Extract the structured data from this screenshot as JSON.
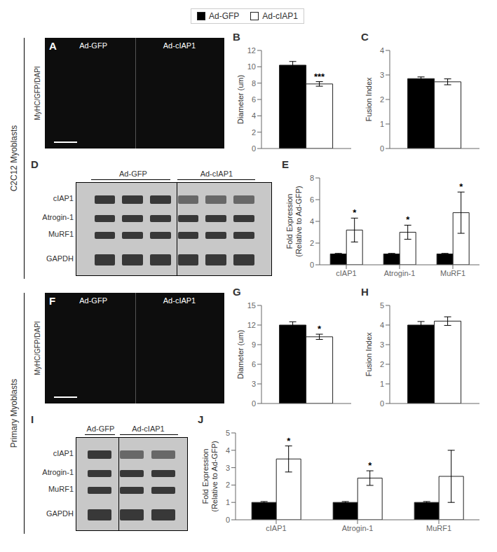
{
  "chart_data": [
    {
      "type": "image",
      "title": "A",
      "annotations": [
        "Ad-GFP",
        "Ad-cIAP1"
      ],
      "ylabel": "MyHC/GFP/DAPI",
      "section": "C2C12 Myoblasts"
    },
    {
      "type": "bar",
      "title": "B",
      "legend": "top",
      "ylabel": "Diameter (um)",
      "categories": [
        null
      ],
      "series": [
        {
          "name": "Ad-GFP",
          "color": "#000000",
          "values": [
            10.2
          ],
          "errors": [
            0.45
          ]
        },
        {
          "name": "Ad-cIAP1",
          "color": "#ffffff",
          "values": [
            7.9
          ],
          "errors": [
            0.28
          ]
        }
      ],
      "ylim": [
        0,
        12
      ],
      "yticks": [
        0,
        2,
        4,
        6,
        8,
        10,
        12
      ],
      "grid": false,
      "annotations": [
        {
          "text": "***",
          "series": "Ad-cIAP1",
          "index": 0
        }
      ]
    },
    {
      "type": "bar",
      "title": "C",
      "ylabel": "Fusion Index",
      "categories": [
        null
      ],
      "series": [
        {
          "name": "Ad-GFP",
          "color": "#000000",
          "values": [
            2.85
          ],
          "errors": [
            0.07
          ]
        },
        {
          "name": "Ad-cIAP1",
          "color": "#ffffff",
          "values": [
            2.72
          ],
          "errors": [
            0.12
          ]
        }
      ],
      "ylim": [
        0,
        4
      ],
      "yticks": [
        0,
        1,
        2,
        3,
        4
      ],
      "grid": false
    },
    {
      "type": "blot",
      "title": "D",
      "categories": [
        "cIAP1",
        "Atrogin-1",
        "MuRF1",
        "GAPDH"
      ],
      "series": [
        {
          "name": "Ad-GFP",
          "lanes": 3
        },
        {
          "name": "Ad-cIAP1",
          "lanes": 3
        }
      ]
    },
    {
      "type": "bar",
      "title": "E",
      "ylabel": "Fold Expression\n(Relative to Ad-GFP)",
      "categories": [
        "cIAP1",
        "Atrogin-1",
        "MuRF1"
      ],
      "series": [
        {
          "name": "Ad-GFP",
          "color": "#000000",
          "values": [
            1.0,
            1.0,
            1.0
          ],
          "errors": [
            0.05,
            0.05,
            0.05
          ]
        },
        {
          "name": "Ad-cIAP1",
          "color": "#ffffff",
          "values": [
            3.2,
            3.0,
            4.8
          ],
          "errors": [
            1.1,
            0.65,
            1.9
          ]
        }
      ],
      "ylim": [
        0,
        8
      ],
      "yticks": [
        0,
        2,
        4,
        6,
        8
      ],
      "grid": false,
      "annotations": [
        {
          "text": "*",
          "series": "Ad-cIAP1",
          "index": 0
        },
        {
          "text": "*",
          "series": "Ad-cIAP1",
          "index": 1
        },
        {
          "text": "*",
          "series": "Ad-cIAP1",
          "index": 2
        }
      ]
    },
    {
      "type": "image",
      "title": "F",
      "annotations": [
        "Ad-GFP",
        "Ad-cIAP1"
      ],
      "ylabel": "MyHC/GFP/DAPI",
      "section": "Primary Myoblasts"
    },
    {
      "type": "bar",
      "title": "G",
      "ylabel": "Diameter (um)",
      "categories": [
        null
      ],
      "series": [
        {
          "name": "Ad-GFP",
          "color": "#000000",
          "values": [
            12.0
          ],
          "errors": [
            0.5
          ]
        },
        {
          "name": "Ad-cIAP1",
          "color": "#ffffff",
          "values": [
            10.2
          ],
          "errors": [
            0.4
          ]
        }
      ],
      "ylim": [
        0,
        15
      ],
      "yticks": [
        0,
        3,
        6,
        9,
        12,
        15
      ],
      "grid": false,
      "annotations": [
        {
          "text": "*",
          "series": "Ad-cIAP1",
          "index": 0
        }
      ]
    },
    {
      "type": "bar",
      "title": "H",
      "ylabel": "Fusion Index",
      "categories": [
        null
      ],
      "series": [
        {
          "name": "Ad-GFP",
          "color": "#000000",
          "values": [
            4.0
          ],
          "errors": [
            0.18
          ]
        },
        {
          "name": "Ad-cIAP1",
          "color": "#ffffff",
          "values": [
            4.2
          ],
          "errors": [
            0.22
          ]
        }
      ],
      "ylim": [
        0,
        5
      ],
      "yticks": [
        0,
        1,
        2,
        3,
        4,
        5
      ],
      "grid": false
    },
    {
      "type": "blot",
      "title": "I",
      "categories": [
        "cIAP1",
        "Atrogin-1",
        "MuRF1",
        "GAPDH"
      ],
      "series": [
        {
          "name": "Ad-GFP",
          "lanes": 1
        },
        {
          "name": "Ad-cIAP1",
          "lanes": 2
        }
      ]
    },
    {
      "type": "bar",
      "title": "J",
      "ylabel": "Fold Expression\n(Relative to Ad-GFP)",
      "categories": [
        "cIAP1",
        "Atrogin-1",
        "MuRF1"
      ],
      "series": [
        {
          "name": "Ad-GFP",
          "color": "#000000",
          "values": [
            1.0,
            1.0,
            1.0
          ],
          "errors": [
            0.05,
            0.05,
            0.05
          ]
        },
        {
          "name": "Ad-cIAP1",
          "color": "#ffffff",
          "values": [
            3.5,
            2.4,
            2.5
          ],
          "errors": [
            0.75,
            0.42,
            1.5
          ]
        }
      ],
      "ylim": [
        0,
        5
      ],
      "yticks": [
        0,
        1,
        2,
        3,
        4,
        5
      ],
      "grid": false,
      "annotations": [
        {
          "text": "*",
          "series": "Ad-cIAP1",
          "index": 0
        },
        {
          "text": "*",
          "series": "Ad-cIAP1",
          "index": 1
        }
      ]
    }
  ]
}
